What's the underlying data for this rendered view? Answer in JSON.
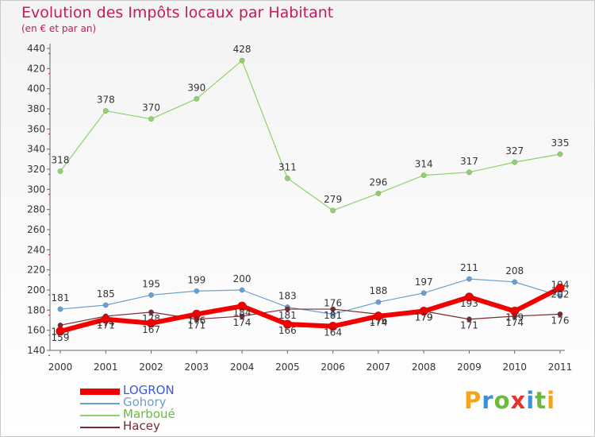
{
  "title": "Evolution des Impôts locaux par Habitant",
  "subtitle": "(en € et par an)",
  "brand": {
    "letters": [
      "P",
      "r",
      "o",
      "x",
      "i",
      "t",
      "i"
    ],
    "colors": [
      "#f7a21b",
      "#3e8fd6",
      "#6aba3c",
      "#e5322d",
      "#3e8fd6",
      "#6aba3c",
      "#f7a21b"
    ]
  },
  "chart_data": {
    "type": "line",
    "x": [
      "2000",
      "2001",
      "2002",
      "2003",
      "2004",
      "2005",
      "2006",
      "2007",
      "2008",
      "2009",
      "2010",
      "2011"
    ],
    "ylim": [
      140,
      440
    ],
    "yticks": [
      140,
      160,
      180,
      200,
      220,
      240,
      260,
      280,
      300,
      320,
      340,
      360,
      380,
      400,
      420,
      440
    ],
    "grid": false,
    "legend_position": "bottom-left",
    "series": [
      {
        "name": "Marboué",
        "color": "#8fd16a",
        "values": [
          318,
          378,
          370,
          390,
          428,
          311,
          279,
          296,
          314,
          317,
          327,
          335
        ]
      },
      {
        "name": "Gohory",
        "color": "#6a9fd0",
        "values": [
          181,
          185,
          195,
          199,
          200,
          183,
          176,
          188,
          197,
          211,
          208,
          194
        ]
      },
      {
        "name": "Hacey",
        "color": "#7a2a32",
        "values": [
          165,
          174,
          178,
          171,
          174,
          181,
          181,
          176,
          179,
          171,
          174,
          176
        ]
      },
      {
        "name": "LOGRON",
        "color": "#f20000",
        "values": [
          159,
          171,
          167,
          176,
          184,
          166,
          164,
          174,
          179,
          193,
          179,
          202
        ]
      }
    ],
    "legend_order": [
      "LOGRON",
      "Gohory",
      "Marboué",
      "Hacey"
    ]
  }
}
